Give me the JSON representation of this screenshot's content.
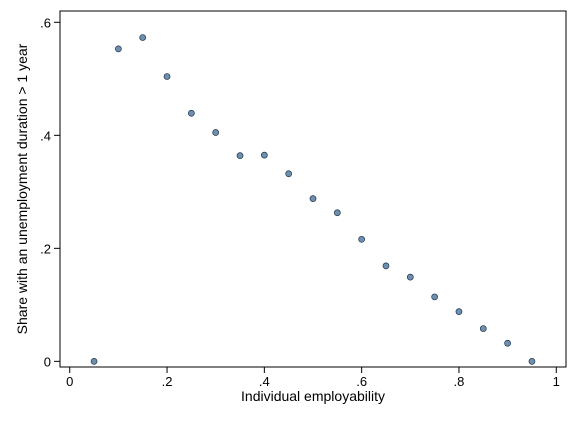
{
  "chart_data": {
    "type": "scatter",
    "xlabel": "Individual employability",
    "ylabel": "Share with an unemployment duration > 1 year",
    "xlim": [
      -0.02,
      1.02
    ],
    "ylim": [
      -0.01,
      0.62
    ],
    "x_ticks": [
      0,
      0.2,
      0.4,
      0.6,
      0.8,
      1
    ],
    "x_tick_labels": [
      "0",
      ".2",
      ".4",
      ".6",
      ".8",
      "1"
    ],
    "y_ticks": [
      0,
      0.2,
      0.4,
      0.6
    ],
    "y_tick_labels": [
      "0",
      ".2",
      ".4",
      ".6"
    ],
    "grid": false,
    "marker_color": "#6f8fae",
    "marker_edge": "#1f3550",
    "series": [
      {
        "x": [
          0.05,
          0.1,
          0.15,
          0.2,
          0.25,
          0.3,
          0.35,
          0.4,
          0.45,
          0.5,
          0.55,
          0.6,
          0.65,
          0.7,
          0.75,
          0.8,
          0.85,
          0.9,
          0.95
        ],
        "y": [
          0.0,
          0.553,
          0.573,
          0.504,
          0.439,
          0.405,
          0.364,
          0.365,
          0.332,
          0.288,
          0.263,
          0.216,
          0.169,
          0.149,
          0.114,
          0.088,
          0.058,
          0.032,
          0.0
        ]
      }
    ]
  }
}
